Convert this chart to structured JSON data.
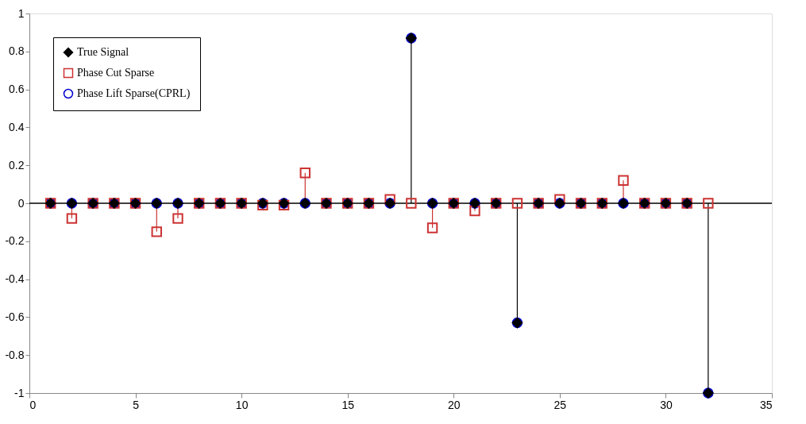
{
  "chart_data": {
    "type": "lollipop",
    "x": [
      1,
      2,
      3,
      4,
      5,
      6,
      7,
      8,
      9,
      10,
      11,
      12,
      13,
      14,
      15,
      16,
      17,
      18,
      19,
      20,
      21,
      22,
      23,
      24,
      25,
      26,
      27,
      28,
      29,
      30,
      31,
      32
    ],
    "series": [
      {
        "name": "True Signal",
        "type": "lollipop",
        "color": "#000000",
        "marker": "diamond",
        "values": [
          0,
          0,
          0,
          0,
          0,
          0,
          0,
          0,
          0,
          0,
          0,
          0,
          0,
          0,
          0,
          0,
          0,
          0.87,
          0,
          0,
          0,
          0,
          -0.63,
          0,
          0,
          0,
          0,
          0,
          0,
          0,
          0,
          -1.0
        ]
      },
      {
        "name": "Phase Cut Sparse",
        "type": "lollipop",
        "color": "#cc3333",
        "marker": "square",
        "values": [
          0,
          -0.08,
          0,
          0,
          0,
          -0.15,
          -0.08,
          0,
          0,
          0,
          -0.01,
          -0.01,
          0.16,
          0,
          0,
          0,
          0.02,
          0,
          -0.13,
          0,
          -0.04,
          0,
          0,
          0,
          0.02,
          0,
          0,
          0.12,
          0,
          0,
          0,
          0
        ]
      },
      {
        "name": "Phase Lift Sparse(CPRL)",
        "type": "scatter",
        "color": "#0000cc",
        "marker": "circle",
        "values": [
          0,
          0,
          0,
          0,
          0,
          0,
          0,
          0,
          0,
          0,
          0,
          0,
          0,
          0,
          0,
          0,
          0,
          0.87,
          0,
          0,
          0,
          0,
          -0.63,
          0,
          0,
          0,
          0,
          0,
          0,
          0,
          0,
          -1.0
        ]
      }
    ],
    "xlim": [
      0,
      35
    ],
    "xticks": [
      0,
      5,
      10,
      15,
      20,
      25,
      30,
      35
    ],
    "ylim": [
      -1,
      1
    ],
    "yticks": [
      -1,
      -0.8,
      -0.6,
      -0.4,
      -0.2,
      0,
      0.2,
      0.4,
      0.6,
      0.8,
      1
    ],
    "ref_lines": [
      {
        "axis": "y",
        "value": 0,
        "color": "#000000"
      }
    ],
    "legend": "top left",
    "grid": false
  }
}
